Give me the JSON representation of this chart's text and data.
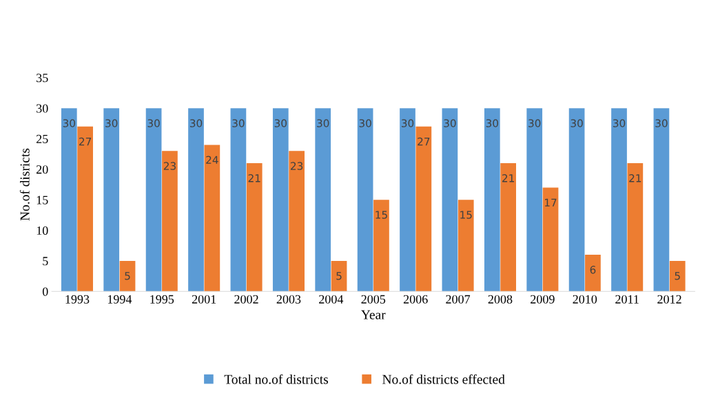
{
  "chart_data": {
    "type": "bar",
    "xlabel": "Year",
    "ylabel": "No.of disricts",
    "categories": [
      "1993",
      "1994",
      "1995",
      "2001",
      "2002",
      "2003",
      "2004",
      "2005",
      "2006",
      "2007",
      "2008",
      "2009",
      "2010",
      "2011",
      "2012"
    ],
    "series": [
      {
        "name": "Total no.of districts",
        "color": "#5b9bd5",
        "values": [
          30,
          30,
          30,
          30,
          30,
          30,
          30,
          30,
          30,
          30,
          30,
          30,
          30,
          30,
          30
        ]
      },
      {
        "name": "No.of districts effected",
        "color": "#ed7d31",
        "values": [
          27,
          5,
          23,
          24,
          21,
          23,
          5,
          15,
          27,
          15,
          21,
          17,
          6,
          21,
          5
        ]
      }
    ],
    "ylim": [
      0,
      35
    ],
    "yticks": [
      0,
      5,
      10,
      15,
      20,
      25,
      30,
      35
    ],
    "grid": false,
    "legend": "bottom",
    "data_labels": true
  }
}
